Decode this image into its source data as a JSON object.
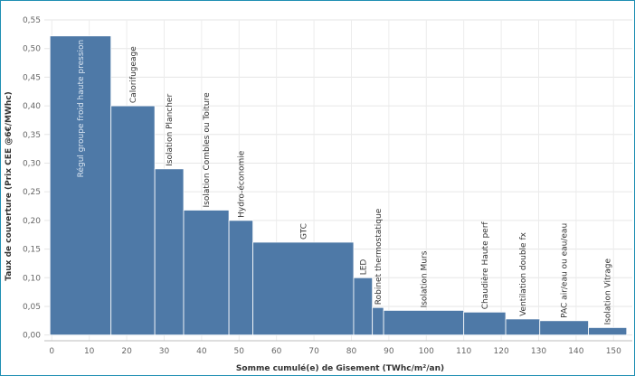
{
  "chart_data": {
    "type": "bar",
    "variable_width": true,
    "xlabel": "Somme cumulé(e) de Gisement (TWhc/m²/an)",
    "ylabel": "Taux de couverture (Prix CEE @6€/MWhc)",
    "xlim": [
      -2,
      155
    ],
    "ylim": [
      -0.01,
      0.55
    ],
    "xticks": [
      0,
      10,
      20,
      30,
      40,
      50,
      60,
      70,
      80,
      90,
      100,
      110,
      120,
      130,
      140,
      150
    ],
    "yticks": [
      0,
      0.05,
      0.1,
      0.15,
      0.2,
      0.25,
      0.3,
      0.35,
      0.4,
      0.45,
      0.5,
      0.55
    ],
    "grid": true,
    "bar_color": "#4e79a7",
    "bars": [
      {
        "label": "Régul groupe froid haute pression",
        "x0": -0.5,
        "x1": 15.8,
        "value": 0.522
      },
      {
        "label": "Calorifugeage",
        "x0": 15.8,
        "x1": 27.5,
        "value": 0.4
      },
      {
        "label": "Isolation Plancher",
        "x0": 27.5,
        "x1": 35.2,
        "value": 0.29
      },
      {
        "label": "Isolation Combles ou Toiture",
        "x0": 35.2,
        "x1": 47.3,
        "value": 0.218
      },
      {
        "label": "Hydro-économie",
        "x0": 47.3,
        "x1": 53.7,
        "value": 0.2
      },
      {
        "label": "GTC",
        "x0": 53.7,
        "x1": 80.6,
        "value": 0.162
      },
      {
        "label": "LED",
        "x0": 80.6,
        "x1": 85.6,
        "value": 0.1
      },
      {
        "label": "Robinet thermostatique",
        "x0": 85.6,
        "x1": 88.6,
        "value": 0.048
      },
      {
        "label": "Isolation Murs",
        "x0": 88.6,
        "x1": 110.0,
        "value": 0.043
      },
      {
        "label": "Chaudière Haute perf",
        "x0": 110.0,
        "x1": 121.2,
        "value": 0.04
      },
      {
        "label": "Ventilation double fx",
        "x0": 121.2,
        "x1": 130.3,
        "value": 0.028
      },
      {
        "label": "PAC air/eau ou eau/eau",
        "x0": 130.3,
        "x1": 143.3,
        "value": 0.025
      },
      {
        "label": "Isolation Vitrage",
        "x0": 143.3,
        "x1": 153.5,
        "value": 0.013
      }
    ]
  }
}
